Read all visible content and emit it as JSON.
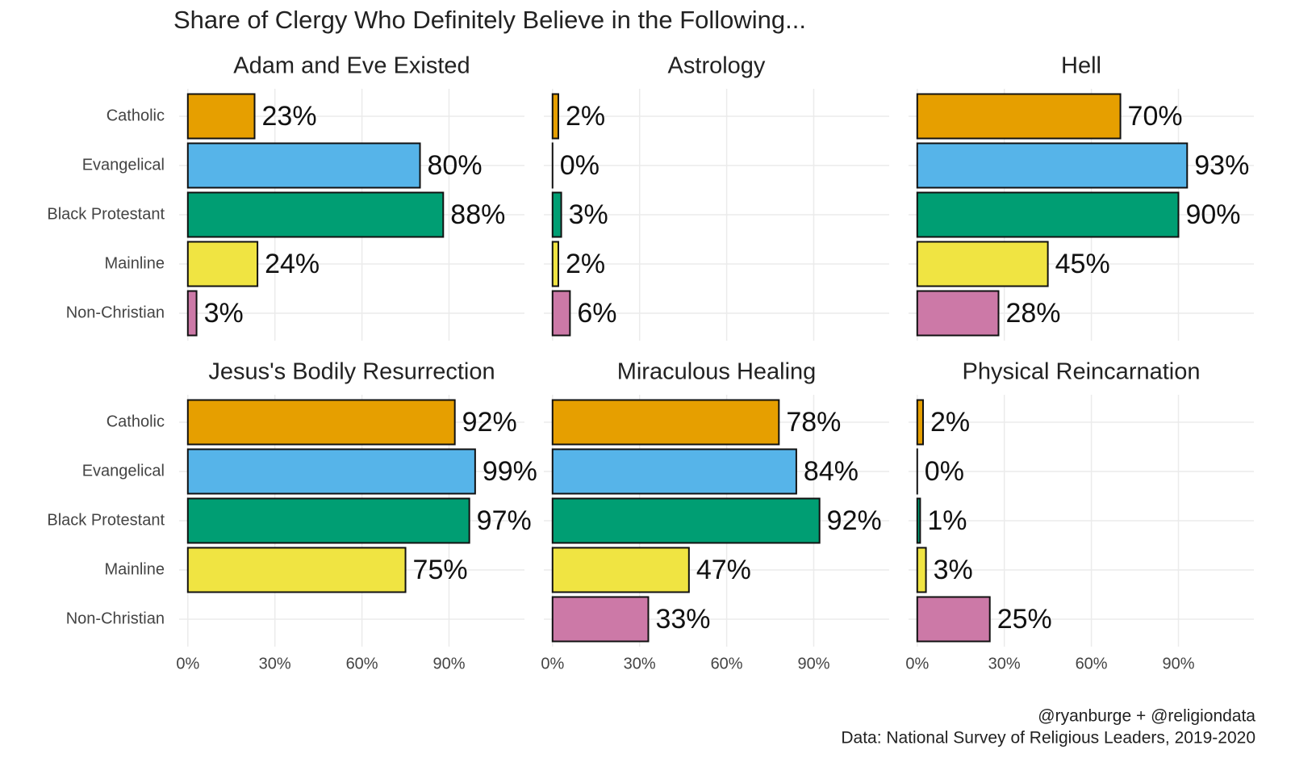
{
  "title": "Share of Clergy Who Definitely Believe in the Following...",
  "caption": [
    "@ryanburge + @religiondata",
    "Data: National Survey of Religious Leaders, 2019-2020"
  ],
  "categories": [
    "Catholic",
    "Evangelical",
    "Black Protestant",
    "Mainline",
    "Non-Christian"
  ],
  "colors": [
    "#E69F00",
    "#56B4E9",
    "#009E73",
    "#F0E442",
    "#CC79A7"
  ],
  "xlim": [
    -3,
    116
  ],
  "xticks": [
    {
      "value": 0,
      "label": "0%"
    },
    {
      "value": 30,
      "label": "30%"
    },
    {
      "value": 60,
      "label": "60%"
    },
    {
      "value": 90,
      "label": "90%"
    }
  ],
  "grid": true,
  "chart_data": [
    {
      "type": "bar",
      "title": "Adam and Eve Existed",
      "values": [
        23,
        80,
        88,
        24,
        3
      ],
      "value_labels": [
        "23%",
        "80%",
        "88%",
        "24%",
        "3%"
      ]
    },
    {
      "type": "bar",
      "title": "Astrology",
      "values": [
        2,
        0,
        3,
        2,
        6
      ],
      "value_labels": [
        "2%",
        "0%",
        "3%",
        "2%",
        "6%"
      ]
    },
    {
      "type": "bar",
      "title": "Hell",
      "values": [
        70,
        93,
        90,
        45,
        28
      ],
      "value_labels": [
        "70%",
        "93%",
        "90%",
        "45%",
        "28%"
      ]
    },
    {
      "type": "bar",
      "title": "Jesus's Bodily Resurrection",
      "values": [
        92,
        99,
        97,
        75,
        null
      ],
      "value_labels": [
        "92%",
        "99%",
        "97%",
        "75%",
        null
      ]
    },
    {
      "type": "bar",
      "title": "Miraculous Healing",
      "values": [
        78,
        84,
        92,
        47,
        33
      ],
      "value_labels": [
        "78%",
        "84%",
        "92%",
        "47%",
        "33%"
      ]
    },
    {
      "type": "bar",
      "title": "Physical Reincarnation",
      "values": [
        2,
        0,
        1,
        3,
        25
      ],
      "value_labels": [
        "2%",
        "0%",
        "1%",
        "3%",
        "25%"
      ]
    }
  ]
}
